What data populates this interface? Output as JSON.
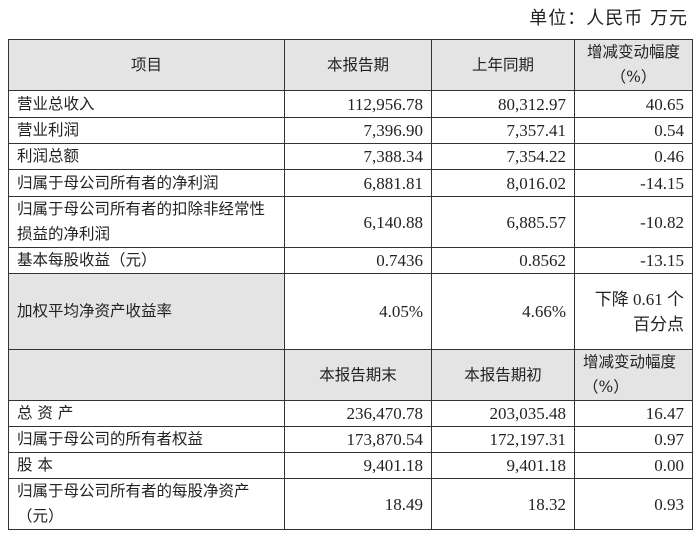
{
  "unit_label": "单位：人民币 万元",
  "table1": {
    "headers": [
      "项目",
      "本报告期",
      "上年同期",
      "增减变动幅度（%）"
    ],
    "rows": [
      {
        "item": "营业总收入",
        "current": "112,956.78",
        "prior": "80,312.97",
        "change": "40.65"
      },
      {
        "item": "营业利润",
        "current": "7,396.90",
        "prior": "7,357.41",
        "change": "0.54"
      },
      {
        "item": "利润总额",
        "current": "7,388.34",
        "prior": "7,354.22",
        "change": "0.46"
      },
      {
        "item": "归属于母公司所有者的净利润",
        "current": "6,881.81",
        "prior": "8,016.02",
        "change": "-14.15"
      },
      {
        "item": "归属于母公司所有者的扣除非经常性损益的净利润",
        "current": "6,140.88",
        "prior": "6,885.57",
        "change": "-10.82"
      },
      {
        "item": "基本每股收益（元）",
        "current": "0.7436",
        "prior": "0.8562",
        "change": "-13.15"
      },
      {
        "item": "加权平均净资产收益率",
        "current": "4.05%",
        "prior": "4.66%",
        "change": "下降 0.61 个百分点"
      }
    ]
  },
  "table2": {
    "headers": [
      "",
      "本报告期末",
      "本报告期初",
      "增减变动幅度（%）"
    ],
    "rows": [
      {
        "item": "总 资 产",
        "current": "236,470.78",
        "prior": "203,035.48",
        "change": "16.47"
      },
      {
        "item": "归属于母公司的所有者权益",
        "current": "173,870.54",
        "prior": "172,197.31",
        "change": "0.97"
      },
      {
        "item": "股 本",
        "current": "9,401.18",
        "prior": "9,401.18",
        "change": "0.00"
      },
      {
        "item": "归属于母公司所有者的每股净资产（元）",
        "current": "18.49",
        "prior": "18.32",
        "change": "0.93"
      }
    ]
  }
}
